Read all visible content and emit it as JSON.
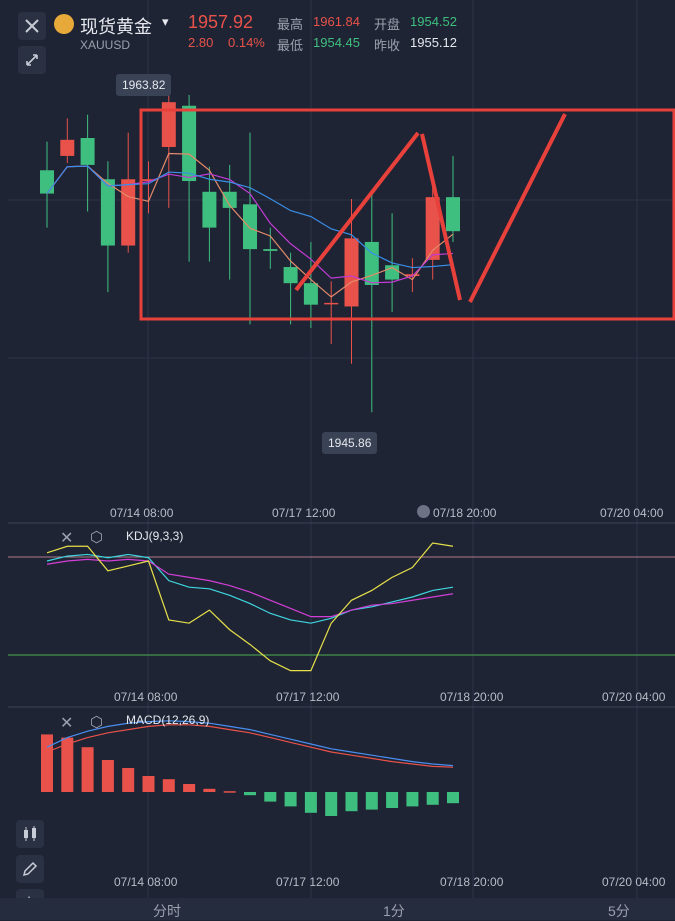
{
  "header": {
    "title": "现货黄金",
    "symbol": "XAUUSD",
    "price": "1957.92",
    "change": "2.80",
    "change_pct": "0.14%",
    "high_label": "最高",
    "high_value": "1961.84",
    "open_label": "开盘",
    "open_value": "1954.52",
    "low_label": "最低",
    "low_value": "1954.45",
    "prev_label": "昨收",
    "prev_value": "1955.12"
  },
  "colors": {
    "up": "#e8524a",
    "down": "#3fbf7f",
    "bg": "#1e2434"
  },
  "chart_data": {
    "type": "candlestick",
    "tooltips": {
      "max_label": "1963.82",
      "min_label": "1945.86"
    },
    "x_ticks": [
      "07/14 08:00",
      "07/17 12:00",
      "07/18 20:00",
      "07/20 04:00"
    ],
    "candles": [
      {
        "o": 1959.4,
        "c": 1958.1,
        "h": 1961.0,
        "l": 1956.2
      },
      {
        "o": 1960.2,
        "c": 1961.1,
        "h": 1962.3,
        "l": 1959.8
      },
      {
        "o": 1961.2,
        "c": 1959.7,
        "h": 1962.5,
        "l": 1957.1
      },
      {
        "o": 1958.9,
        "c": 1955.2,
        "h": 1959.9,
        "l": 1952.6
      },
      {
        "o": 1955.2,
        "c": 1958.9,
        "h": 1961.5,
        "l": 1954.8
      },
      {
        "o": 1958.8,
        "c": 1958.9,
        "h": 1959.9,
        "l": 1957.0
      },
      {
        "o": 1960.7,
        "c": 1963.2,
        "h": 1963.8,
        "l": 1957.3
      },
      {
        "o": 1963.0,
        "c": 1958.8,
        "h": 1963.6,
        "l": 1954.3
      },
      {
        "o": 1958.2,
        "c": 1956.2,
        "h": 1959.6,
        "l": 1954.3
      },
      {
        "o": 1958.2,
        "c": 1957.3,
        "h": 1959.7,
        "l": 1953.3
      },
      {
        "o": 1957.5,
        "c": 1955.0,
        "h": 1961.5,
        "l": 1950.8
      },
      {
        "o": 1955.0,
        "c": 1954.9,
        "h": 1956.2,
        "l": 1953.9
      },
      {
        "o": 1954.0,
        "c": 1953.1,
        "h": 1954.8,
        "l": 1950.8
      },
      {
        "o": 1953.1,
        "c": 1951.9,
        "h": 1955.4,
        "l": 1950.6
      },
      {
        "o": 1952.0,
        "c": 1952.0,
        "h": 1953.2,
        "l": 1949.7
      },
      {
        "o": 1951.8,
        "c": 1955.6,
        "h": 1957.8,
        "l": 1948.6
      },
      {
        "o": 1955.4,
        "c": 1953.0,
        "h": 1958.1,
        "l": 1945.9
      },
      {
        "o": 1954.1,
        "c": 1953.3,
        "h": 1957.0,
        "l": 1951.5
      },
      {
        "o": 1953.5,
        "c": 1953.6,
        "h": 1954.5,
        "l": 1952.6
      },
      {
        "o": 1954.4,
        "c": 1957.9,
        "h": 1959.1,
        "l": 1953.3
      },
      {
        "o": 1957.9,
        "c": 1956.0,
        "h": 1960.2,
        "l": 1955.4
      }
    ],
    "kdj": {
      "label": "KDJ(9,3,3)",
      "k": [
        88,
        91,
        92,
        90,
        92,
        90,
        76,
        72,
        71,
        67,
        62,
        56,
        52,
        50,
        53,
        58,
        60,
        63,
        66,
        70,
        72
      ],
      "d": [
        86,
        88,
        89,
        88,
        89,
        88,
        80,
        78,
        76,
        73,
        69,
        64,
        59,
        54,
        54,
        58,
        61,
        62,
        64,
        66,
        68
      ],
      "j": [
        93,
        97,
        97,
        82,
        85,
        88,
        52,
        50,
        58,
        46,
        37,
        27,
        21,
        21,
        50,
        64,
        70,
        78,
        84,
        99,
        97
      ]
    },
    "macd": {
      "label": "MACD(12,26,9)",
      "dif": [
        2.8,
        3.4,
        3.8,
        4.1,
        4.3,
        4.4,
        4.45,
        4.4,
        4.3,
        4.1,
        3.9,
        3.6,
        3.3,
        3.0,
        2.7,
        2.5,
        2.3,
        2.1,
        1.9,
        1.75,
        1.65
      ],
      "dea": [
        2.5,
        3.0,
        3.4,
        3.7,
        3.9,
        4.1,
        4.2,
        4.2,
        4.1,
        3.9,
        3.7,
        3.4,
        3.1,
        2.8,
        2.5,
        2.3,
        2.1,
        1.9,
        1.75,
        1.6,
        1.55
      ],
      "hist": [
        3.6,
        3.4,
        2.8,
        2.0,
        1.5,
        1.0,
        0.8,
        0.5,
        0.2,
        0.05,
        -0.2,
        -0.6,
        -0.9,
        -1.3,
        -1.5,
        -1.2,
        -1.1,
        -1.0,
        -0.9,
        -0.8,
        -0.7
      ]
    }
  },
  "tabs": {
    "t1": "分时",
    "t2": "1分",
    "t3": "5分"
  }
}
